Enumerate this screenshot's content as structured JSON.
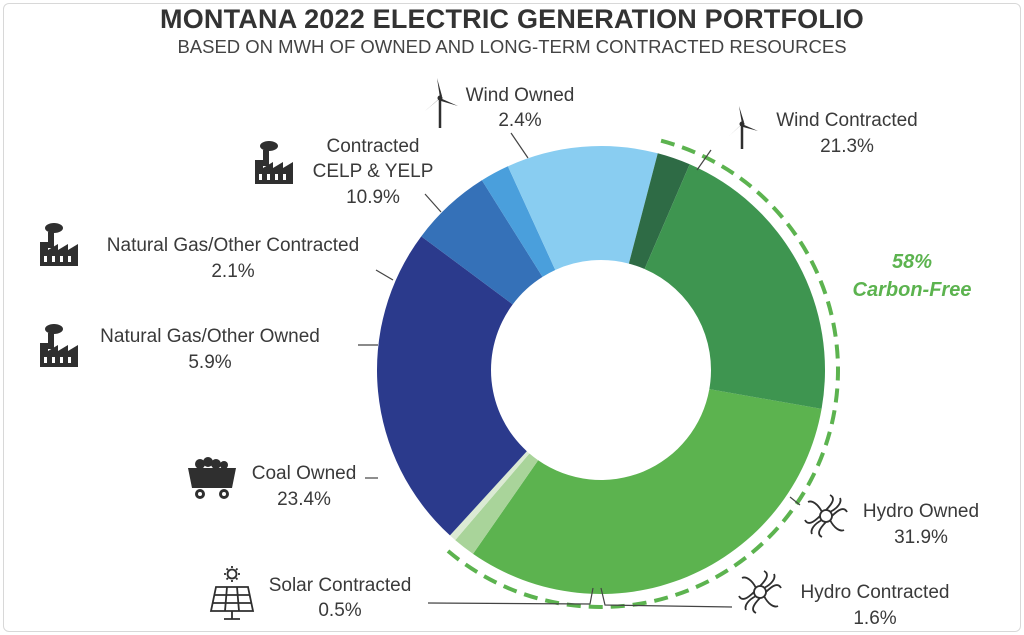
{
  "title": "MONTANA 2022 ELECTRIC GENERATION PORTFOLIO",
  "subtitle": "BASED ON MWH OF OWNED AND LONG-TERM CONTRACTED RESOURCES",
  "carbon_free": {
    "value": "58%",
    "label": "Carbon-Free",
    "color": "#5cb34f"
  },
  "chart_data": {
    "type": "pie",
    "style": "donut",
    "title": "MONTANA 2022 ELECTRIC GENERATION PORTFOLIO",
    "subtitle": "BASED ON MWH OF OWNED AND LONG-TERM CONTRACTED RESOURCES",
    "slices": [
      {
        "name": "Hydro Owned",
        "value": 31.9,
        "label": "31.9%",
        "color": "#5cb34f",
        "icon": "hydro-turbine-icon"
      },
      {
        "name": "Hydro Contracted",
        "value": 1.6,
        "label": "1.6%",
        "color": "#a9d49a",
        "icon": "hydro-turbine-icon"
      },
      {
        "name": "Solar Contracted",
        "value": 0.5,
        "label": "0.5%",
        "color": "#dbead3",
        "icon": "solar-panel-icon"
      },
      {
        "name": "Coal Owned",
        "value": 23.4,
        "label": "23.4%",
        "color": "#2b3a8c",
        "icon": "coal-cart-icon"
      },
      {
        "name": "Natural Gas/Other Owned",
        "value": 5.9,
        "label": "5.9%",
        "color": "#3571b8",
        "icon": "factory-icon"
      },
      {
        "name": "Natural Gas/Other Contracted",
        "value": 2.1,
        "label": "2.1%",
        "color": "#4a9fdc",
        "icon": "factory-icon"
      },
      {
        "name": "Contracted CELP & YELP",
        "value": 10.9,
        "label": "10.9%",
        "color": "#89cdf1",
        "icon": "factory-icon"
      },
      {
        "name": "Wind Owned",
        "value": 2.4,
        "label": "2.4%",
        "color": "#2e6b45",
        "icon": "wind-turbine-icon"
      },
      {
        "name": "Wind Contracted",
        "value": 21.3,
        "label": "21.3%",
        "color": "#3e9550",
        "icon": "wind-turbine-icon"
      }
    ],
    "legend": "none"
  },
  "labels": {
    "hydro_owned": {
      "name": "Hydro Owned",
      "value": "31.9%"
    },
    "hydro_contracted": {
      "name": "Hydro Contracted",
      "value": "1.6%"
    },
    "solar_contracted": {
      "name": "Solar Contracted",
      "value": "0.5%"
    },
    "coal_owned": {
      "name": "Coal Owned",
      "value": "23.4%"
    },
    "gas_owned": {
      "name": "Natural Gas/Other Owned",
      "value": "5.9%"
    },
    "gas_contracted": {
      "name": "Natural Gas/Other Contracted",
      "value": "2.1%"
    },
    "celp": {
      "name_line1": "Contracted",
      "name_line2": "CELP & YELP",
      "value": "10.9%"
    },
    "wind_owned": {
      "name": "Wind Owned",
      "value": "2.4%"
    },
    "wind_contracted": {
      "name": "Wind Contracted",
      "value": "21.3%"
    }
  }
}
